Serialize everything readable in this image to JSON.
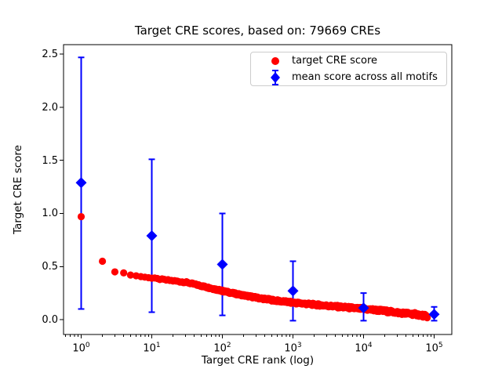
{
  "figure": {
    "background": "#ffffff"
  },
  "chart_data": {
    "type": "scatter",
    "title": "Target CRE scores, based on: 79669 CREs",
    "xlabel": "Target CRE rank (log)",
    "ylabel": "Target CRE score",
    "n_cres": 79669,
    "grid": false,
    "colors": {
      "target": "#ff0000",
      "mean": "#0000ff",
      "axis": "#000000",
      "legend_border": "#cccccc"
    },
    "x_axis": {
      "scale": "log",
      "lim_log10": [
        -0.25,
        5.25
      ],
      "major_tick_exponents": [
        0,
        1,
        2,
        3,
        4,
        5
      ],
      "minor_tick_mantissas": [
        2,
        3,
        4,
        5,
        6,
        7,
        8,
        9
      ]
    },
    "y_axis": {
      "lim": [
        -0.14,
        2.59
      ],
      "ticks": [
        {
          "v": 0.0,
          "label": "0.0"
        },
        {
          "v": 0.5,
          "label": "0.5"
        },
        {
          "v": 1.0,
          "label": "1.0"
        },
        {
          "v": 1.5,
          "label": "1.5"
        },
        {
          "v": 2.0,
          "label": "2.0"
        },
        {
          "v": 2.5,
          "label": "2.5"
        }
      ]
    },
    "legend": {
      "position": "upper right",
      "items": [
        {
          "label": "target CRE score",
          "marker": "circle",
          "color": "#ff0000"
        },
        {
          "label": "mean score across all motifs",
          "marker": "diamond-errorbar",
          "color": "#0000ff"
        }
      ]
    },
    "series": [
      {
        "name": "target CRE score",
        "type": "scatter",
        "marker": "circle",
        "color": "#ff0000",
        "n_points": 79669,
        "anchors_log10rank_score": [
          [
            0,
            0.97
          ],
          [
            0.301,
            0.55
          ],
          [
            0.477,
            0.45
          ],
          [
            0.602,
            0.44
          ],
          [
            0.699,
            0.42
          ],
          [
            0.778,
            0.413
          ],
          [
            0.845,
            0.405
          ],
          [
            0.903,
            0.4
          ],
          [
            0.954,
            0.395
          ],
          [
            1.0,
            0.39
          ],
          [
            1.25,
            0.37
          ],
          [
            1.5,
            0.35
          ],
          [
            1.75,
            0.31
          ],
          [
            2.0,
            0.27
          ],
          [
            2.25,
            0.235
          ],
          [
            2.5,
            0.205
          ],
          [
            2.75,
            0.18
          ],
          [
            3.0,
            0.16
          ],
          [
            3.25,
            0.145
          ],
          [
            3.5,
            0.13
          ],
          [
            3.75,
            0.115
          ],
          [
            4.0,
            0.1
          ],
          [
            4.25,
            0.085
          ],
          [
            4.5,
            0.065
          ],
          [
            4.75,
            0.05
          ],
          [
            4.901,
            0.03
          ]
        ]
      },
      {
        "name": "mean score across all motifs",
        "type": "errorbar",
        "marker": "diamond",
        "color": "#0000ff",
        "points": [
          {
            "rank": 1,
            "mean": 1.29,
            "lo": 0.1,
            "hi": 2.47
          },
          {
            "rank": 10,
            "mean": 0.79,
            "lo": 0.07,
            "hi": 1.51
          },
          {
            "rank": 100,
            "mean": 0.52,
            "lo": 0.04,
            "hi": 1.0
          },
          {
            "rank": 1000,
            "mean": 0.27,
            "lo": -0.01,
            "hi": 0.55
          },
          {
            "rank": 10000,
            "mean": 0.11,
            "lo": -0.01,
            "hi": 0.25
          },
          {
            "rank": 100000,
            "mean": 0.05,
            "lo": -0.01,
            "hi": 0.12
          }
        ]
      }
    ]
  }
}
